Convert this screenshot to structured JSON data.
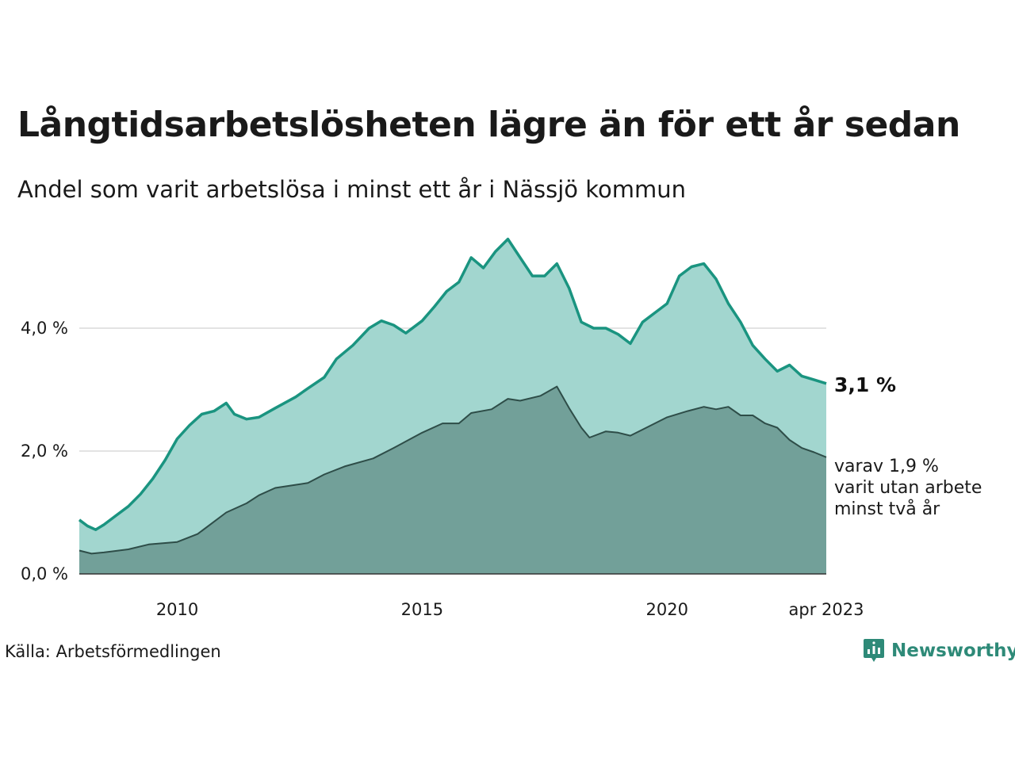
{
  "header": {
    "title": "Långtidsarbetslösheten lägre än för ett år sedan",
    "subtitle": "Andel som varit arbetslösa i minst ett år i Nässjö kommun"
  },
  "footer": {
    "source": "Källa: Arbetsförmedlingen",
    "brand": "Newsworthy"
  },
  "chart_data": {
    "type": "area",
    "x_range": [
      "2008-01",
      "2023-04"
    ],
    "x_ticks": [
      {
        "date": "2010-01",
        "label": "2010"
      },
      {
        "date": "2015-01",
        "label": "2015"
      },
      {
        "date": "2020-01",
        "label": "2020"
      },
      {
        "date": "2023-04",
        "label": "apr 2023"
      }
    ],
    "y_ticks": [
      {
        "value": 0,
        "label": "0,0 %"
      },
      {
        "value": 2,
        "label": "2,0 %"
      },
      {
        "value": 4,
        "label": "4,0 %"
      }
    ],
    "ylim": [
      0,
      5.6
    ],
    "grid": true,
    "colors": {
      "total_line": "#1a9480",
      "total_fill": "#a2d6cf",
      "two_year_line": "#2e4d48",
      "two_year_fill": "#72a099",
      "grid": "#e3e3e3",
      "axis": "#333333"
    },
    "end_labels": {
      "total": "3,1 %",
      "two_year": [
        "varav 1,9 %",
        "varit utan arbete",
        "minst två år"
      ]
    },
    "series": [
      {
        "key": "total",
        "points": [
          [
            "2008-01",
            0.88
          ],
          [
            "2008-03",
            0.78
          ],
          [
            "2008-05",
            0.72
          ],
          [
            "2008-07",
            0.8
          ],
          [
            "2008-10",
            0.95
          ],
          [
            "2009-01",
            1.1
          ],
          [
            "2009-04",
            1.3
          ],
          [
            "2009-07",
            1.55
          ],
          [
            "2009-10",
            1.85
          ],
          [
            "2010-01",
            2.2
          ],
          [
            "2010-04",
            2.42
          ],
          [
            "2010-07",
            2.6
          ],
          [
            "2010-10",
            2.65
          ],
          [
            "2011-01",
            2.78
          ],
          [
            "2011-03",
            2.6
          ],
          [
            "2011-06",
            2.52
          ],
          [
            "2011-09",
            2.55
          ],
          [
            "2012-01",
            2.7
          ],
          [
            "2012-06",
            2.88
          ],
          [
            "2012-09",
            3.02
          ],
          [
            "2013-01",
            3.2
          ],
          [
            "2013-04",
            3.5
          ],
          [
            "2013-08",
            3.72
          ],
          [
            "2013-12",
            4.0
          ],
          [
            "2014-03",
            4.12
          ],
          [
            "2014-06",
            4.05
          ],
          [
            "2014-09",
            3.92
          ],
          [
            "2015-01",
            4.12
          ],
          [
            "2015-04",
            4.35
          ],
          [
            "2015-07",
            4.6
          ],
          [
            "2015-10",
            4.75
          ],
          [
            "2016-01",
            5.15
          ],
          [
            "2016-04",
            4.98
          ],
          [
            "2016-07",
            5.25
          ],
          [
            "2016-10",
            5.45
          ],
          [
            "2017-01",
            5.15
          ],
          [
            "2017-04",
            4.85
          ],
          [
            "2017-07",
            4.85
          ],
          [
            "2017-10",
            5.05
          ],
          [
            "2018-01",
            4.65
          ],
          [
            "2018-04",
            4.1
          ],
          [
            "2018-07",
            4.0
          ],
          [
            "2018-10",
            4.0
          ],
          [
            "2019-01",
            3.9
          ],
          [
            "2019-04",
            3.75
          ],
          [
            "2019-07",
            4.1
          ],
          [
            "2019-10",
            4.25
          ],
          [
            "2020-01",
            4.4
          ],
          [
            "2020-04",
            4.85
          ],
          [
            "2020-07",
            5.0
          ],
          [
            "2020-10",
            5.05
          ],
          [
            "2021-01",
            4.8
          ],
          [
            "2021-04",
            4.4
          ],
          [
            "2021-07",
            4.1
          ],
          [
            "2021-10",
            3.72
          ],
          [
            "2022-01",
            3.5
          ],
          [
            "2022-04",
            3.3
          ],
          [
            "2022-07",
            3.4
          ],
          [
            "2022-10",
            3.22
          ],
          [
            "2023-01",
            3.16
          ],
          [
            "2023-04",
            3.1
          ]
        ]
      },
      {
        "key": "two_year",
        "points": [
          [
            "2008-01",
            0.38
          ],
          [
            "2008-04",
            0.33
          ],
          [
            "2008-07",
            0.35
          ],
          [
            "2009-01",
            0.4
          ],
          [
            "2009-06",
            0.48
          ],
          [
            "2010-01",
            0.52
          ],
          [
            "2010-06",
            0.65
          ],
          [
            "2011-01",
            1.0
          ],
          [
            "2011-06",
            1.15
          ],
          [
            "2011-09",
            1.28
          ],
          [
            "2012-01",
            1.4
          ],
          [
            "2012-06",
            1.45
          ],
          [
            "2012-09",
            1.48
          ],
          [
            "2013-01",
            1.62
          ],
          [
            "2013-06",
            1.75
          ],
          [
            "2014-01",
            1.88
          ],
          [
            "2014-06",
            2.05
          ],
          [
            "2015-01",
            2.3
          ],
          [
            "2015-06",
            2.45
          ],
          [
            "2015-10",
            2.45
          ],
          [
            "2016-01",
            2.62
          ],
          [
            "2016-06",
            2.68
          ],
          [
            "2016-10",
            2.85
          ],
          [
            "2017-01",
            2.82
          ],
          [
            "2017-06",
            2.9
          ],
          [
            "2017-10",
            3.05
          ],
          [
            "2018-01",
            2.7
          ],
          [
            "2018-04",
            2.38
          ],
          [
            "2018-06",
            2.22
          ],
          [
            "2018-10",
            2.32
          ],
          [
            "2019-01",
            2.3
          ],
          [
            "2019-04",
            2.25
          ],
          [
            "2019-07",
            2.35
          ],
          [
            "2020-01",
            2.55
          ],
          [
            "2020-06",
            2.65
          ],
          [
            "2020-10",
            2.72
          ],
          [
            "2021-01",
            2.68
          ],
          [
            "2021-04",
            2.72
          ],
          [
            "2021-07",
            2.58
          ],
          [
            "2021-10",
            2.58
          ],
          [
            "2022-01",
            2.45
          ],
          [
            "2022-04",
            2.38
          ],
          [
            "2022-07",
            2.18
          ],
          [
            "2022-10",
            2.05
          ],
          [
            "2023-01",
            1.98
          ],
          [
            "2023-04",
            1.9
          ]
        ]
      }
    ]
  }
}
